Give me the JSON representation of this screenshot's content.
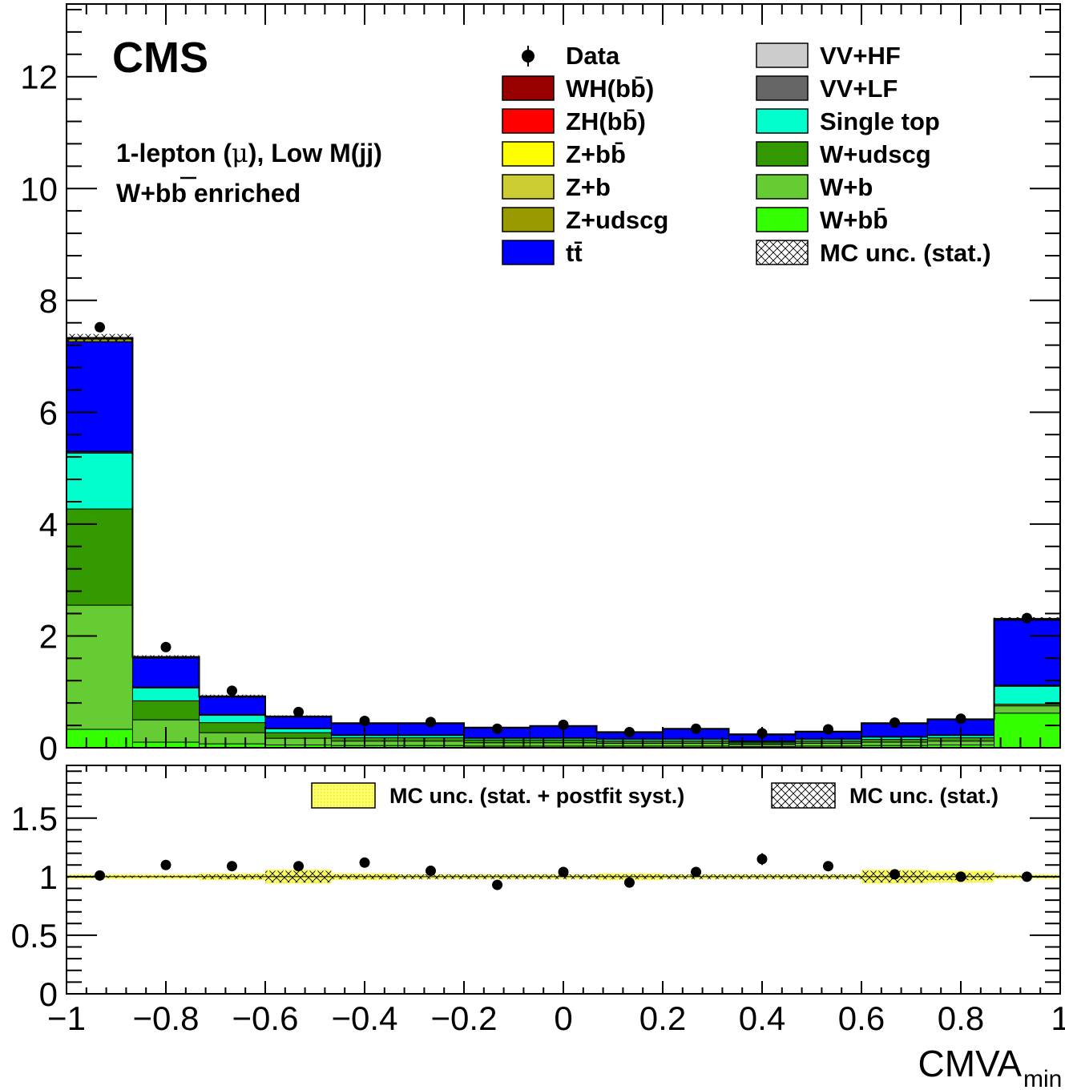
{
  "chart_data": [
    {
      "type": "bar",
      "stacked": true,
      "title": "",
      "xlabel": "CMVA",
      "xlabel_subscript": "min",
      "ylabel": "",
      "xlim": [
        -1,
        1
      ],
      "ylim": [
        0,
        13.3
      ],
      "x_bin_edges": [
        -1,
        -0.867,
        -0.733,
        -0.6,
        -0.467,
        -0.333,
        -0.2,
        -0.067,
        0.067,
        0.2,
        0.333,
        0.467,
        0.6,
        0.733,
        0.867,
        1
      ],
      "x_ticks": [
        -1,
        -0.8,
        -0.6,
        -0.4,
        -0.2,
        0,
        0.2,
        0.4,
        0.6,
        0.8,
        1
      ],
      "x_tick_labels": [
        "−1",
        "−0.8",
        "−0.6",
        "−0.4",
        "−0.2",
        "0",
        "0.2",
        "0.4",
        "0.6",
        "0.8",
        "1"
      ],
      "y_ticks": [
        0,
        2,
        4,
        6,
        8,
        10,
        12
      ],
      "y_tick_labels": [
        "0",
        "2",
        "4",
        "6",
        "8",
        "10",
        "12"
      ],
      "series": [
        {
          "name": "W+bb̄",
          "color": "#33ff00",
          "values": [
            0.33,
            0.1,
            0.07,
            0.05,
            0.04,
            0.04,
            0.03,
            0.03,
            0.03,
            0.03,
            0.02,
            0.03,
            0.04,
            0.05,
            0.62
          ]
        },
        {
          "name": "W+b",
          "color": "#66cc33",
          "values": [
            2.22,
            0.4,
            0.2,
            0.12,
            0.08,
            0.08,
            0.06,
            0.06,
            0.05,
            0.05,
            0.04,
            0.05,
            0.06,
            0.07,
            0.13
          ]
        },
        {
          "name": "W+udscg",
          "color": "#339900",
          "values": [
            1.72,
            0.34,
            0.18,
            0.1,
            0.06,
            0.06,
            0.05,
            0.05,
            0.04,
            0.04,
            0.03,
            0.04,
            0.05,
            0.06,
            0.03
          ]
        },
        {
          "name": "Single top",
          "color": "#00ffcc",
          "values": [
            1.0,
            0.23,
            0.13,
            0.07,
            0.04,
            0.04,
            0.03,
            0.03,
            0.03,
            0.03,
            0.02,
            0.03,
            0.04,
            0.04,
            0.32
          ]
        },
        {
          "name": "VV+LF",
          "color": "#666666",
          "values": [
            0.02,
            0.01,
            0.01,
            0.005,
            0.005,
            0.005,
            0.005,
            0.005,
            0.005,
            0.005,
            0.005,
            0.005,
            0.005,
            0.005,
            0.01
          ]
        },
        {
          "name": "VV+HF",
          "color": "#cccccc",
          "values": [
            0.01,
            0.005,
            0.005,
            0.005,
            0.005,
            0.005,
            0.005,
            0.005,
            0.005,
            0.005,
            0.005,
            0.005,
            0.005,
            0.005,
            0.01
          ]
        },
        {
          "name": "tt̄",
          "color": "#0000ff",
          "values": [
            1.96,
            0.52,
            0.31,
            0.2,
            0.2,
            0.2,
            0.17,
            0.2,
            0.11,
            0.17,
            0.11,
            0.12,
            0.23,
            0.27,
            1.16
          ]
        },
        {
          "name": "Z+udscg",
          "color": "#999900",
          "values": [
            0.05,
            0.01,
            0.005,
            0.005,
            0.005,
            0.005,
            0.005,
            0.005,
            0.005,
            0.005,
            0.005,
            0.005,
            0.005,
            0.005,
            0.01
          ]
        },
        {
          "name": "Z+b",
          "color": "#cccc33",
          "values": [
            0.01,
            0.005,
            0.005,
            0.002,
            0.002,
            0.002,
            0.002,
            0.002,
            0.002,
            0.002,
            0.002,
            0.002,
            0.002,
            0.002,
            0.005
          ]
        },
        {
          "name": "Z+bb̄",
          "color": "#ffff00",
          "values": [
            0.005,
            0.002,
            0.002,
            0.001,
            0.001,
            0.001,
            0.001,
            0.001,
            0.001,
            0.001,
            0.001,
            0.001,
            0.001,
            0.001,
            0.003
          ]
        },
        {
          "name": "ZH(bb̄)",
          "color": "#ff0000",
          "values": [
            0.002,
            0.001,
            0.001,
            0.001,
            0.001,
            0.001,
            0.001,
            0.001,
            0.001,
            0.001,
            0.001,
            0.001,
            0.001,
            0.001,
            0.002
          ]
        },
        {
          "name": "WH(bb̄)",
          "color": "#990000",
          "values": [
            0.003,
            0.002,
            0.002,
            0.002,
            0.002,
            0.002,
            0.002,
            0.002,
            0.002,
            0.002,
            0.002,
            0.002,
            0.002,
            0.002,
            0.005
          ]
        }
      ],
      "data": {
        "name": "Data",
        "x": [
          -0.933,
          -0.8,
          -0.667,
          -0.533,
          -0.4,
          -0.267,
          -0.133,
          0.0,
          0.133,
          0.267,
          0.4,
          0.533,
          0.667,
          0.8,
          0.933
        ],
        "y": [
          7.52,
          1.8,
          1.02,
          0.64,
          0.48,
          0.46,
          0.34,
          0.41,
          0.28,
          0.34,
          0.26,
          0.33,
          0.45,
          0.52,
          2.32
        ],
        "yerr": [
          0.03,
          0.02,
          0.02,
          0.02,
          0.02,
          0.02,
          0.02,
          0.02,
          0.02,
          0.02,
          0.02,
          0.02,
          0.02,
          0.02,
          0.03
        ]
      },
      "mc_unc_stat": [
        0.07,
        0.03,
        0.03,
        0.02,
        0.01,
        0.01,
        0.01,
        0.01,
        0.01,
        0.01,
        0.01,
        0.01,
        0.01,
        0.01,
        0.03
      ]
    },
    {
      "type": "scatter",
      "title": "",
      "xlabel": "",
      "ylabel": "",
      "xlim": [
        -1,
        1
      ],
      "ylim": [
        0,
        1.95
      ],
      "y_ticks": [
        0,
        0.5,
        1,
        1.5
      ],
      "y_tick_labels": [
        "0",
        "0.5",
        "1",
        "1.5"
      ],
      "ratio": {
        "x": [
          -0.933,
          -0.8,
          -0.667,
          -0.533,
          -0.4,
          -0.267,
          -0.133,
          0.0,
          0.133,
          0.267,
          0.4,
          0.533,
          0.667,
          0.8,
          0.933
        ],
        "y": [
          1.01,
          1.1,
          1.09,
          1.09,
          1.12,
          1.05,
          0.93,
          1.04,
          0.95,
          1.04,
          1.15,
          1.09,
          1.02,
          1.0,
          1.0
        ],
        "yerr": [
          0.01,
          0.02,
          0.02,
          0.03,
          0.04,
          0.04,
          0.04,
          0.04,
          0.04,
          0.04,
          0.05,
          0.04,
          0.04,
          0.03,
          0.02
        ]
      },
      "band_syst": [
        0.02,
        0.02,
        0.03,
        0.06,
        0.03,
        0.02,
        0.02,
        0.02,
        0.03,
        0.02,
        0.02,
        0.02,
        0.06,
        0.05,
        0.02
      ],
      "band_stat": [
        0.01,
        0.01,
        0.02,
        0.05,
        0.02,
        0.02,
        0.02,
        0.02,
        0.02,
        0.02,
        0.02,
        0.02,
        0.05,
        0.03,
        0.01
      ]
    }
  ],
  "labels": {
    "cms": "CMS",
    "region_line1_prefix": "1-lepton (",
    "region_line1_mu": "μ",
    "region_line1_suffix": "), Low M(jj)",
    "region_line2_a": "W+b",
    "region_line2_b": "b",
    "region_line2_c": " enriched"
  },
  "legend_main": [
    {
      "label": "Data",
      "kind": "marker"
    },
    {
      "label": "WH(bb̄)",
      "kind": "box",
      "color": "#990000"
    },
    {
      "label": "ZH(bb̄)",
      "kind": "box",
      "color": "#ff0000"
    },
    {
      "label": "Z+bb̄",
      "kind": "box",
      "color": "#ffff00"
    },
    {
      "label": "Z+b",
      "kind": "box",
      "color": "#cccc33"
    },
    {
      "label": "Z+udscg",
      "kind": "box",
      "color": "#999900"
    },
    {
      "label": "tt̄",
      "kind": "box",
      "color": "#0000ff"
    },
    {
      "label": "VV+HF",
      "kind": "box",
      "color": "#cccccc"
    },
    {
      "label": "VV+LF",
      "kind": "box",
      "color": "#666666"
    },
    {
      "label": "Single top",
      "kind": "box",
      "color": "#00ffcc"
    },
    {
      "label": "W+udscg",
      "kind": "box",
      "color": "#339900"
    },
    {
      "label": "W+b",
      "kind": "box",
      "color": "#66cc33"
    },
    {
      "label": "W+bb̄",
      "kind": "box",
      "color": "#33ff00"
    },
    {
      "label": "MC unc. (stat.)",
      "kind": "hatch"
    }
  ],
  "legend_ratio": [
    {
      "label": "MC unc. (stat. + postfit syst.)",
      "kind": "yellow"
    },
    {
      "label": "MC unc. (stat.)",
      "kind": "hatch"
    }
  ]
}
